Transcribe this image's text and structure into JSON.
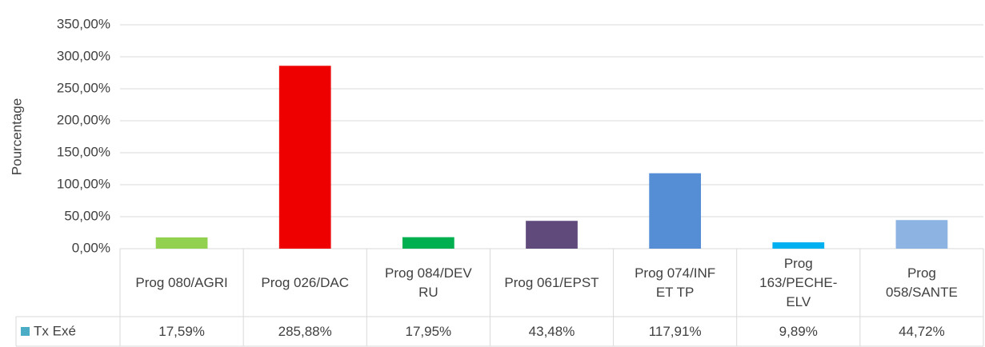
{
  "chart_data": {
    "type": "bar",
    "y_label": "Pourcentage",
    "categories": [
      "Prog 080/AGRI",
      "Prog 026/DAC",
      "Prog 084/DEV RU",
      "Prog 061/EPST",
      "Prog 074/INF ET TP",
      "Prog 163/PECHE-ELV",
      "Prog 058/SANTE"
    ],
    "series": [
      {
        "name": "Tx Exé",
        "color": "#4bacc6",
        "values": [
          17.59,
          285.88,
          17.95,
          43.48,
          117.91,
          9.89,
          44.72
        ],
        "value_labels": [
          "17,59%",
          "285,88%",
          "17,95%",
          "43,48%",
          "117,91%",
          "9,89%",
          "44,72%"
        ],
        "colors": [
          "#92d050",
          "#ee0000",
          "#00b050",
          "#604a7b",
          "#558ed5",
          "#00b0f0",
          "#8db3e2"
        ]
      }
    ],
    "ylim": [
      0,
      350
    ],
    "yticks": [
      {
        "value": 0,
        "label": "0,00%"
      },
      {
        "value": 50,
        "label": "50,00%"
      },
      {
        "value": 100,
        "label": "100,00%"
      },
      {
        "value": 150,
        "label": "150,00%"
      },
      {
        "value": 200,
        "label": "200,00%"
      },
      {
        "value": 250,
        "label": "250,00%"
      },
      {
        "value": 300,
        "label": "300,00%"
      },
      {
        "value": 350,
        "label": "350,00%"
      }
    ],
    "grid": true
  }
}
